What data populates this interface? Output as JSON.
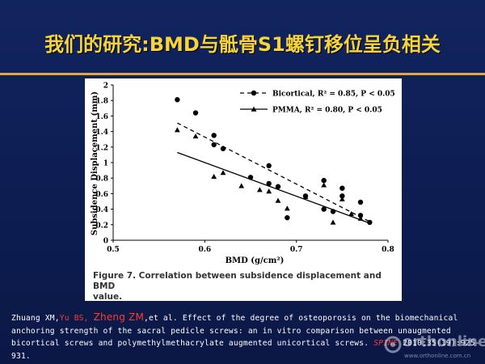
{
  "title": "我们的研究:BMD与骶骨S1螺钉移位呈负相关",
  "figure_caption": {
    "label": "Figure 7. Correlation between subsidence displacement and BMD",
    "continuation": "value."
  },
  "citation": {
    "authors_a": "Zhuang XM,",
    "author_red1": "Yu BS",
    "sep": ", ",
    "author_red2": "Zheng ZM",
    "authors_b": ",et al. Effect of the degree of osteoporosis on the biomechanical anchoring strength of the sacral pedicle screws: an in vitro comparison between unaugmented bicortical screws and polymethylmethacrylate augmented unicortical screws. ",
    "journal": "SPINE",
    "year_vol": " 2010;35(19):925-931."
  },
  "watermark": {
    "brand": "orthonline",
    "url": "www.orthonline.com.cn"
  },
  "chart_data": {
    "type": "scatter",
    "xlabel": "BMD (g/cm²)",
    "ylabel": "Subsidence Displacement (mm)",
    "xlim": [
      0.5,
      0.8
    ],
    "ylim": [
      0,
      2
    ],
    "xticks": [
      "0.5",
      "0.6",
      "0.7",
      "0.8"
    ],
    "yticks": [
      "0",
      "0.2",
      "0.4",
      "0.6",
      "0.8",
      "1",
      "1.2",
      "1.4",
      "1.6",
      "1.8",
      "2"
    ],
    "grid": false,
    "legend_position": "top-right",
    "series": [
      {
        "name": "Bicortical, R² = 0.85, P < 0.05",
        "marker": "circle",
        "line": "dashed",
        "fit": [
          [
            0.57,
            1.51
          ],
          [
            0.78,
            0.24
          ]
        ],
        "points": [
          [
            0.57,
            1.81
          ],
          [
            0.59,
            1.64
          ],
          [
            0.61,
            1.35
          ],
          [
            0.61,
            1.23
          ],
          [
            0.62,
            1.18
          ],
          [
            0.65,
            0.81
          ],
          [
            0.67,
            0.96
          ],
          [
            0.67,
            0.73
          ],
          [
            0.68,
            0.69
          ],
          [
            0.69,
            0.29
          ],
          [
            0.71,
            0.57
          ],
          [
            0.73,
            0.77
          ],
          [
            0.73,
            0.4
          ],
          [
            0.74,
            0.37
          ],
          [
            0.75,
            0.67
          ],
          [
            0.75,
            0.57
          ],
          [
            0.77,
            0.49
          ],
          [
            0.77,
            0.32
          ],
          [
            0.78,
            0.23
          ]
        ]
      },
      {
        "name": "PMMA, R² = 0.80, P < 0.05",
        "marker": "triangle",
        "line": "solid",
        "fit": [
          [
            0.57,
            1.13
          ],
          [
            0.78,
            0.22
          ]
        ],
        "points": [
          [
            0.57,
            1.42
          ],
          [
            0.59,
            1.34
          ],
          [
            0.61,
            0.82
          ],
          [
            0.62,
            0.87
          ],
          [
            0.64,
            0.7
          ],
          [
            0.66,
            0.65
          ],
          [
            0.67,
            0.63
          ],
          [
            0.68,
            0.51
          ],
          [
            0.69,
            0.41
          ],
          [
            0.71,
            0.56
          ],
          [
            0.73,
            0.71
          ],
          [
            0.74,
            0.23
          ],
          [
            0.75,
            0.53
          ],
          [
            0.76,
            0.34
          ],
          [
            0.77,
            0.28
          ]
        ]
      }
    ]
  }
}
